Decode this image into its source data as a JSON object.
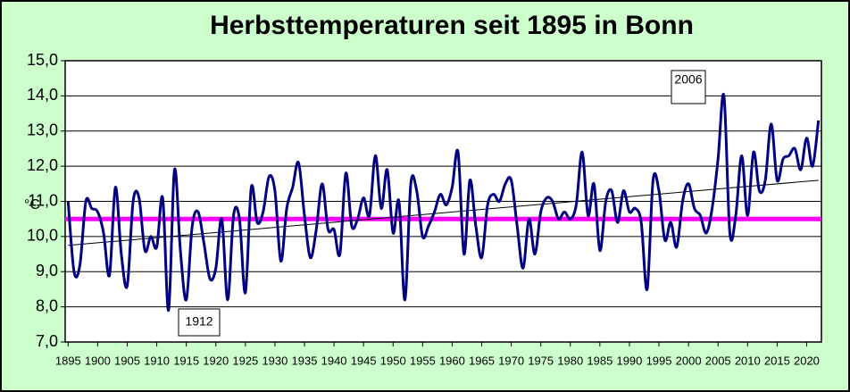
{
  "chart_data": {
    "type": "line",
    "title": "Herbsttemperaturen seit 1895 in Bonn",
    "y_label": "°C",
    "annotations": [
      "2006",
      "1912"
    ],
    "x": [
      1895,
      1896,
      1897,
      1898,
      1899,
      1900,
      1901,
      1902,
      1903,
      1904,
      1905,
      1906,
      1907,
      1908,
      1909,
      1910,
      1911,
      1912,
      1913,
      1914,
      1915,
      1916,
      1917,
      1918,
      1919,
      1920,
      1921,
      1922,
      1923,
      1924,
      1925,
      1926,
      1927,
      1928,
      1929,
      1930,
      1931,
      1932,
      1933,
      1934,
      1935,
      1936,
      1937,
      1938,
      1939,
      1940,
      1941,
      1942,
      1943,
      1944,
      1945,
      1946,
      1947,
      1948,
      1949,
      1950,
      1951,
      1952,
      1953,
      1954,
      1955,
      1956,
      1957,
      1958,
      1959,
      1960,
      1961,
      1962,
      1963,
      1964,
      1965,
      1966,
      1967,
      1968,
      1969,
      1970,
      1971,
      1972,
      1973,
      1974,
      1975,
      1976,
      1977,
      1978,
      1979,
      1980,
      1981,
      1982,
      1983,
      1984,
      1985,
      1986,
      1987,
      1988,
      1989,
      1990,
      1991,
      1992,
      1993,
      1994,
      1995,
      1996,
      1997,
      1998,
      1999,
      2000,
      2001,
      2002,
      2003,
      2004,
      2005,
      2006,
      2007,
      2008,
      2009,
      2010,
      2011,
      2012,
      2013,
      2014,
      2015,
      2016,
      2017,
      2018,
      2019,
      2020,
      2021,
      2022
    ],
    "series": [
      {
        "color": "#000080",
        "values": [
          11.0,
          9.0,
          9.2,
          11.0,
          10.8,
          10.7,
          10.1,
          8.9,
          11.4,
          9.5,
          8.6,
          11.0,
          11.1,
          9.6,
          10.0,
          9.7,
          11.1,
          7.9,
          11.9,
          9.6,
          8.2,
          10.3,
          10.7,
          9.8,
          8.8,
          9.1,
          10.5,
          8.2,
          10.6,
          10.5,
          8.4,
          11.4,
          10.4,
          10.7,
          11.7,
          11.3,
          9.3,
          10.8,
          11.4,
          12.1,
          10.6,
          9.4,
          10.2,
          11.5,
          10.2,
          10.2,
          9.5,
          11.8,
          10.3,
          10.5,
          11.1,
          10.6,
          12.3,
          10.8,
          11.9,
          10.1,
          11.0,
          8.2,
          11.5,
          11.3,
          10.0,
          10.3,
          10.7,
          11.2,
          10.9,
          11.4,
          12.4,
          9.5,
          11.6,
          10.3,
          9.4,
          10.9,
          11.2,
          11.0,
          11.5,
          11.6,
          10.3,
          9.1,
          10.5,
          9.5,
          10.7,
          11.1,
          11.0,
          10.5,
          10.7,
          10.5,
          10.9,
          12.4,
          10.6,
          11.5,
          9.6,
          11.0,
          11.3,
          10.4,
          11.3,
          10.7,
          10.8,
          10.4,
          8.5,
          11.6,
          11.3,
          9.9,
          10.4,
          9.7,
          11.0,
          11.5,
          10.8,
          10.6,
          10.1,
          10.8,
          12.2,
          14.0,
          10.1,
          10.6,
          12.3,
          10.6,
          12.4,
          11.3,
          11.6,
          13.2,
          11.6,
          12.2,
          12.3,
          12.5,
          11.9,
          12.8,
          12.0,
          13.3
        ]
      }
    ],
    "mean_line": {
      "value": 10.5,
      "color": "#ff00ff"
    },
    "trend_line": {
      "x": [
        1895,
        2022
      ],
      "values": [
        9.75,
        11.6
      ],
      "color": "#000000"
    },
    "xlim": [
      1894.5,
      2022.5
    ],
    "xticks": [
      1895,
      1900,
      1905,
      1910,
      1915,
      1920,
      1925,
      1930,
      1935,
      1940,
      1945,
      1950,
      1955,
      1960,
      1965,
      1970,
      1975,
      1980,
      1985,
      1990,
      1995,
      2000,
      2005,
      2010,
      2015,
      2020
    ],
    "ylim": [
      7,
      15
    ],
    "yticks": [
      {
        "value": 7,
        "label": "7,0"
      },
      {
        "value": 8,
        "label": "8,0"
      },
      {
        "value": 9,
        "label": "9,0"
      },
      {
        "value": 10,
        "label": "10,0"
      },
      {
        "value": 11,
        "label": "11,0"
      },
      {
        "value": 12,
        "label": "12,0"
      },
      {
        "value": 13,
        "label": "13,0"
      },
      {
        "value": 14,
        "label": "14,0"
      },
      {
        "value": 15,
        "label": "15,0"
      }
    ],
    "grid": true,
    "background": "#ccffcc"
  }
}
